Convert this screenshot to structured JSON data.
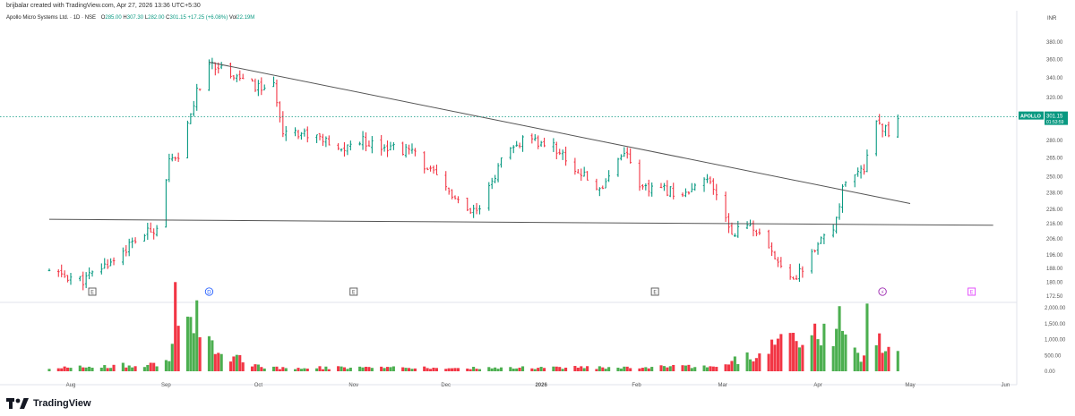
{
  "header": {
    "created_by": "brijbalar created with TradingView.com, Apr 27, 2026 13:36 UTC+5:30",
    "symbol_title": "Apollo Micro Systems Ltd. · 1D · NSE",
    "open_label": "O",
    "open": "285.00",
    "high_label": "H",
    "high": "307.30",
    "low_label": "L",
    "low": "282.00",
    "close_label": "C",
    "close": "301.15",
    "change": "+17.25 (+6.08%)",
    "vol_label": "Vol",
    "volume": "22.19M",
    "currency": "INR"
  },
  "price_badge": {
    "symbol": "APOLLO",
    "price": "301.15",
    "countdown": "01:53:59"
  },
  "branding": {
    "name": "TradingView"
  },
  "colors": {
    "up": "#089981",
    "down": "#f23645",
    "vol_up": "#4caf50",
    "vol_down": "#f23645",
    "trendline": "#555555",
    "price_line": "#089981"
  },
  "chart_data": {
    "type": "ohlc",
    "price_axis": {
      "ticks": [
        "380.00",
        "360.00",
        "340.00",
        "320.00",
        "300.00",
        "280.00",
        "265.00",
        "250.00",
        "238.00",
        "226.00",
        "216.00",
        "206.00",
        "196.00",
        "188.00",
        "180.00",
        "172.50"
      ],
      "scale": "log"
    },
    "volume_axis": {
      "ticks": [
        "2,000.00",
        "1,500.00",
        "1,000.00",
        "500.00",
        "0.00"
      ],
      "range": [
        0,
        2000
      ]
    },
    "x_ticks": [
      "Aug",
      "Sep",
      "Oct",
      "Nov",
      "Dec",
      "2026",
      "Feb",
      "Mar",
      "Apr",
      "May",
      "Jun"
    ],
    "event_markers": [
      {
        "label": "E",
        "kind": "earnings"
      },
      {
        "label": "D",
        "kind": "dividend"
      },
      {
        "label": "E",
        "kind": "earnings"
      },
      {
        "label": "E",
        "kind": "earnings"
      },
      {
        "label": "⚡",
        "kind": "split"
      },
      {
        "label": "E",
        "kind": "earnings-upcoming"
      }
    ],
    "trendlines": [
      {
        "from": {
          "date": "2025-09-15",
          "price": 357
        },
        "to": {
          "date": "2026-05-01",
          "price": 230
        }
      },
      {
        "from": {
          "date": "2025-07-25",
          "price": 219
        },
        "to": {
          "date": "2026-05-28",
          "price": 215
        }
      }
    ],
    "price_line": 301.15,
    "anchors": [
      [
        "2025-07-25",
        186
      ],
      [
        "2025-08-05",
        181
      ],
      [
        "2025-08-14",
        192
      ],
      [
        "2025-08-22",
        205
      ],
      [
        "2025-08-29",
        214
      ],
      [
        "2025-09-02",
        262
      ],
      [
        "2025-09-05",
        262
      ],
      [
        "2025-09-11",
        325
      ],
      [
        "2025-09-16",
        356
      ],
      [
        "2025-09-23",
        344
      ],
      [
        "2025-09-30",
        330
      ],
      [
        "2025-10-06",
        330
      ],
      [
        "2025-10-09",
        290
      ],
      [
        "2025-10-20",
        284
      ],
      [
        "2025-10-27",
        270
      ],
      [
        "2025-11-03",
        280
      ],
      [
        "2025-11-12",
        275
      ],
      [
        "2025-11-20",
        270
      ],
      [
        "2025-12-03",
        236
      ],
      [
        "2025-12-08",
        223
      ],
      [
        "2025-12-12",
        225
      ],
      [
        "2025-12-19",
        262
      ],
      [
        "2025-12-26",
        280
      ],
      [
        "2026-01-05",
        275
      ],
      [
        "2026-01-12",
        256
      ],
      [
        "2026-01-20",
        240
      ],
      [
        "2026-01-28",
        272
      ],
      [
        "2026-02-03",
        240
      ],
      [
        "2026-02-10",
        240
      ],
      [
        "2026-02-18",
        237
      ],
      [
        "2026-02-24",
        248
      ],
      [
        "2026-02-27",
        235
      ],
      [
        "2026-03-04",
        210
      ],
      [
        "2026-03-10",
        216
      ],
      [
        "2026-03-17",
        196
      ],
      [
        "2026-03-25",
        182
      ],
      [
        "2026-03-31",
        200
      ],
      [
        "2026-04-06",
        212
      ],
      [
        "2026-04-09",
        240
      ],
      [
        "2026-04-16",
        256
      ],
      [
        "2026-04-20",
        300
      ],
      [
        "2026-04-24",
        285
      ],
      [
        "2026-04-27",
        301
      ]
    ],
    "volume_anchors": [
      [
        "2025-07-25",
        100
      ],
      [
        "2025-08-28",
        220
      ],
      [
        "2025-09-02",
        350
      ],
      [
        "2025-09-04",
        2100
      ],
      [
        "2025-09-08",
        1400
      ],
      [
        "2025-09-12",
        1700
      ],
      [
        "2025-09-16",
        800
      ],
      [
        "2025-09-22",
        500
      ],
      [
        "2025-10-03",
        120
      ],
      [
        "2025-12-12",
        100
      ],
      [
        "2026-02-27",
        150
      ],
      [
        "2026-04-08",
        1450
      ],
      [
        "2026-04-15",
        300
      ],
      [
        "2026-04-17",
        1480
      ],
      [
        "2026-04-20",
        900
      ],
      [
        "2026-04-24",
        700
      ],
      [
        "2026-04-27",
        650
      ]
    ]
  }
}
